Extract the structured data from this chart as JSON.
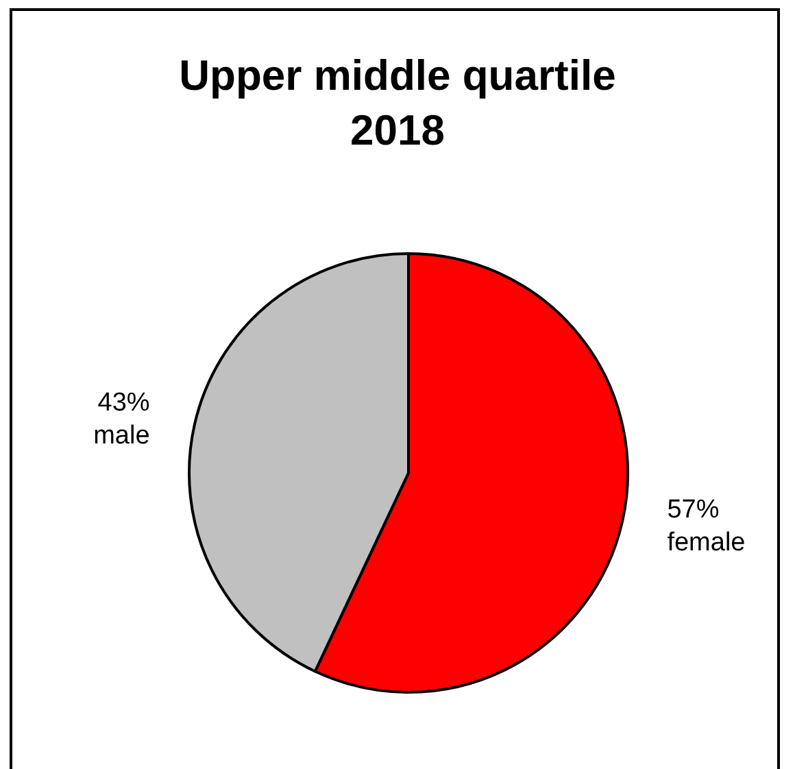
{
  "chart_data": {
    "type": "pie",
    "title": "Upper middle quartile\n2018",
    "categories": [
      "female",
      "male"
    ],
    "values": [
      57,
      43
    ],
    "value_labels": [
      "57%",
      "43%"
    ],
    "colors": [
      "#ff0000",
      "#c0c0c0"
    ],
    "legend": false
  }
}
